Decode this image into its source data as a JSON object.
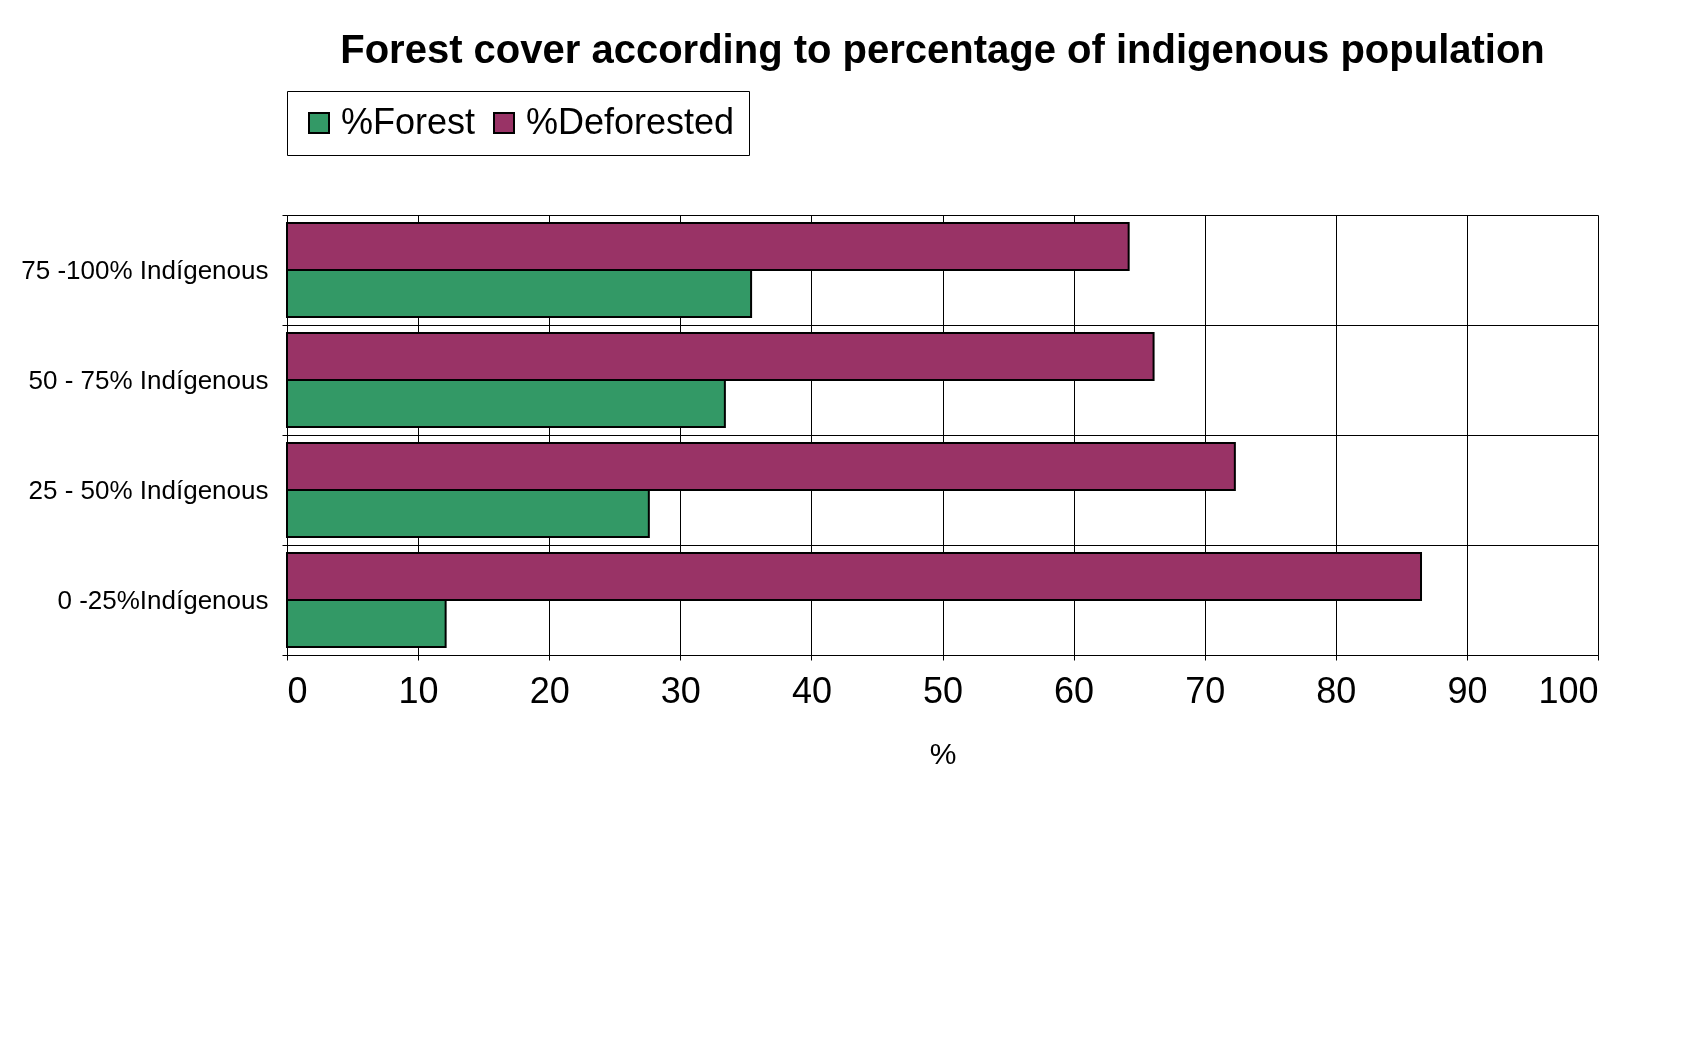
{
  "chart_data": {
    "type": "bar",
    "orientation": "horizontal",
    "title": "Forest cover according to percentage of indigenous population",
    "xlabel": "%",
    "categories": [
      "75 -100% Indígenous",
      "50 - 75% Indígenous",
      "25 - 50% Indígenous",
      "0 -25%Indígenous"
    ],
    "series": [
      {
        "name": "%Forest",
        "color": "#339966",
        "values": [
          35.4,
          33.4,
          27.6,
          12.1
        ]
      },
      {
        "name": "%Deforested",
        "color": "#993366",
        "values": [
          64.2,
          66.1,
          72.3,
          86.5
        ]
      }
    ],
    "xlim": [
      0,
      100
    ],
    "xticks": [
      0,
      10,
      20,
      30,
      40,
      50,
      60,
      70,
      80,
      90,
      100
    ],
    "grid": true,
    "legend": "top"
  }
}
